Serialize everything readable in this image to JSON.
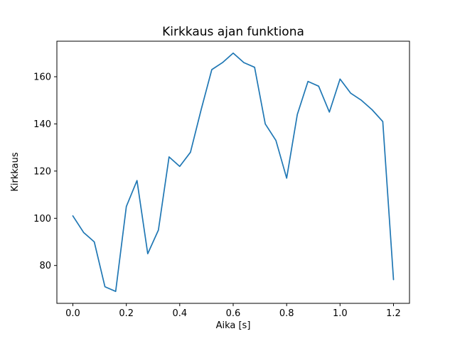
{
  "chart_data": {
    "type": "line",
    "title": "Kirkkaus ajan funktiona",
    "xlabel": "Aika [s]",
    "ylabel": "Kirkkaus",
    "x": [
      0.0,
      0.04,
      0.08,
      0.12,
      0.16,
      0.2,
      0.24,
      0.28,
      0.32,
      0.36,
      0.4,
      0.44,
      0.48,
      0.52,
      0.56,
      0.6,
      0.64,
      0.68,
      0.72,
      0.76,
      0.8,
      0.84,
      0.88,
      0.92,
      0.96,
      1.0,
      1.04,
      1.08,
      1.12,
      1.16,
      1.2
    ],
    "y": [
      101,
      94,
      90,
      71,
      69,
      105,
      116,
      85,
      95,
      126,
      122,
      128,
      146,
      163,
      166,
      170,
      166,
      164,
      140,
      133,
      117,
      144,
      158,
      156,
      145,
      159,
      153,
      150,
      146,
      141,
      74
    ],
    "xlim": [
      -0.06,
      1.26
    ],
    "ylim": [
      63.95,
      175.05
    ],
    "xticks": [
      0.0,
      0.2,
      0.4,
      0.6,
      0.8,
      1.0,
      1.2
    ],
    "xtick_labels": [
      "0.0",
      "0.2",
      "0.4",
      "0.6",
      "0.8",
      "1.0",
      "1.2"
    ],
    "yticks": [
      80,
      100,
      120,
      140,
      160
    ],
    "ytick_labels": [
      "80",
      "100",
      "120",
      "140",
      "160"
    ],
    "grid": false,
    "legend": null,
    "line_color": "#1f77b4",
    "axis_color": "#000000",
    "background_color": "#ffffff"
  }
}
